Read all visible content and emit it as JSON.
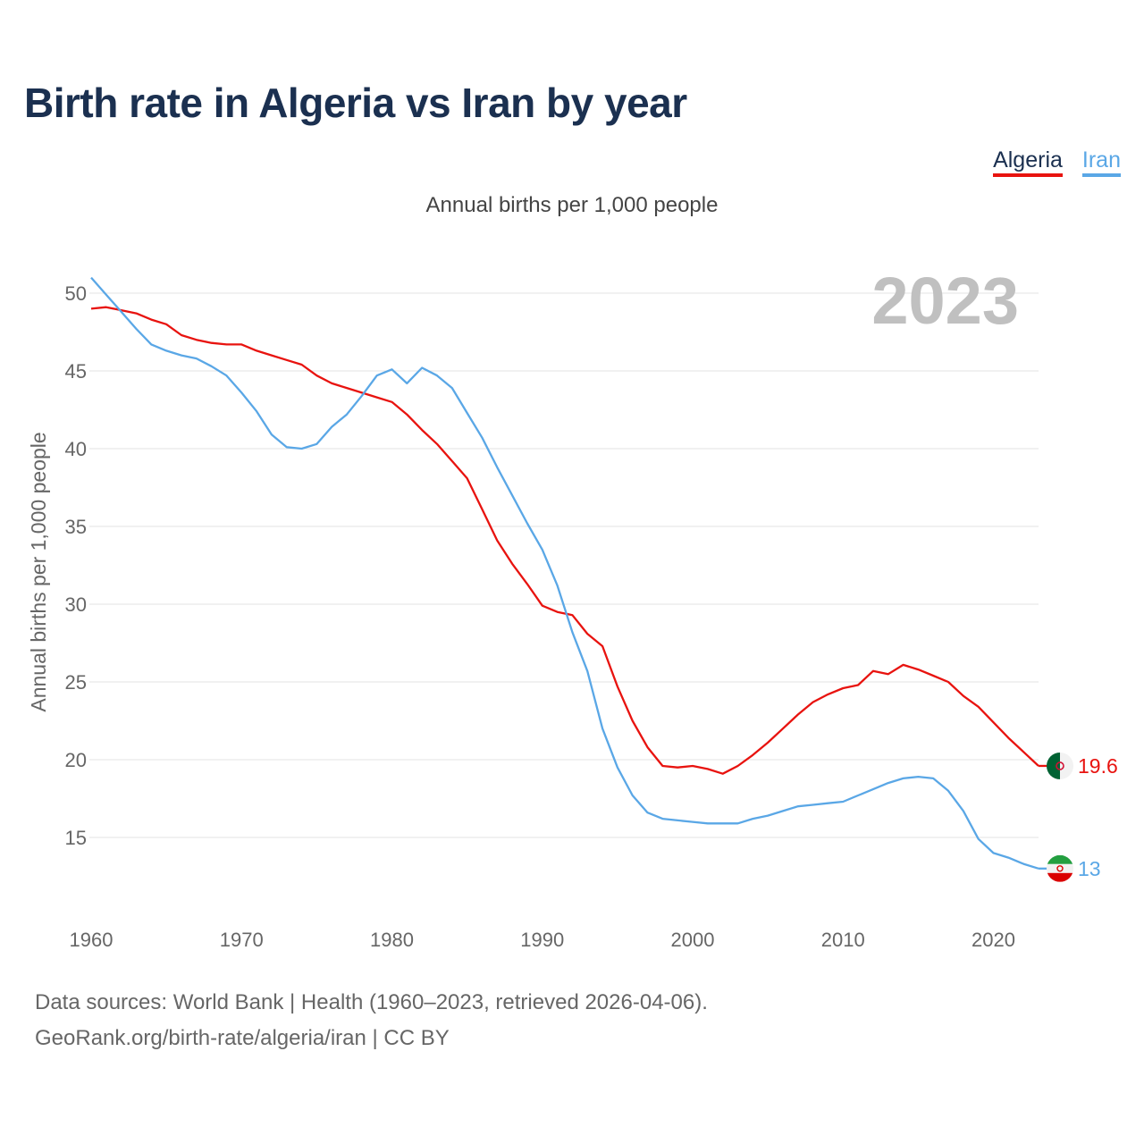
{
  "title": "Birth rate in Algeria vs Iran by year",
  "subtitle": "Annual births per 1,000 people",
  "year_watermark": "2023",
  "footer": {
    "line1": "Data sources: World Bank | Health (1960–2023, retrieved 2026-04-06).",
    "line2": "GeoRank.org/birth-rate/algeria/iran | CC BY"
  },
  "colors": {
    "algeria": "#e8130f",
    "iran": "#5aa7e6",
    "title": "#1b3050",
    "watermark": "#c0c0c0"
  },
  "chart_data": {
    "type": "line",
    "title": "Birth rate in Algeria vs Iran by year",
    "subtitle": "Annual births per 1,000 people",
    "xlabel": "",
    "ylabel": "Annual births per 1,000 people",
    "xlim": [
      1960,
      2023
    ],
    "ylim": [
      10,
      52
    ],
    "xticks": [
      1960,
      1970,
      1980,
      1990,
      2000,
      2010,
      2020
    ],
    "yticks": [
      15,
      20,
      25,
      30,
      35,
      40,
      45,
      50
    ],
    "grid": "horizontal",
    "legend_position": "top-right",
    "x": [
      1960,
      1961,
      1962,
      1963,
      1964,
      1965,
      1966,
      1967,
      1968,
      1969,
      1970,
      1971,
      1972,
      1973,
      1974,
      1975,
      1976,
      1977,
      1978,
      1979,
      1980,
      1981,
      1982,
      1983,
      1984,
      1985,
      1986,
      1987,
      1988,
      1989,
      1990,
      1991,
      1992,
      1993,
      1994,
      1995,
      1996,
      1997,
      1998,
      1999,
      2000,
      2001,
      2002,
      2003,
      2004,
      2005,
      2006,
      2007,
      2008,
      2009,
      2010,
      2011,
      2012,
      2013,
      2014,
      2015,
      2016,
      2017,
      2018,
      2019,
      2020,
      2021,
      2022,
      2023
    ],
    "series": [
      {
        "name": "Algeria",
        "color": "#e8130f",
        "end_label": "19.6",
        "values": [
          49.0,
          49.1,
          48.9,
          48.7,
          48.3,
          48.0,
          47.3,
          47.0,
          46.8,
          46.7,
          46.7,
          46.3,
          46.0,
          45.7,
          45.4,
          44.7,
          44.2,
          43.9,
          43.6,
          43.3,
          43.0,
          42.2,
          41.2,
          40.3,
          39.2,
          38.1,
          36.1,
          34.1,
          32.6,
          31.3,
          29.9,
          29.5,
          29.3,
          28.1,
          27.3,
          24.7,
          22.5,
          20.8,
          19.6,
          19.5,
          19.6,
          19.4,
          19.1,
          19.6,
          20.3,
          21.1,
          22.0,
          22.9,
          23.7,
          24.2,
          24.6,
          24.8,
          25.7,
          25.5,
          26.1,
          25.8,
          25.4,
          25.0,
          24.1,
          23.4,
          22.4,
          21.4,
          20.5,
          19.6
        ]
      },
      {
        "name": "Iran",
        "color": "#5aa7e6",
        "end_label": "13",
        "values": [
          51.0,
          49.9,
          48.8,
          47.7,
          46.7,
          46.3,
          46.0,
          45.8,
          45.3,
          44.7,
          43.6,
          42.4,
          40.9,
          40.1,
          40.0,
          40.3,
          41.4,
          42.2,
          43.4,
          44.7,
          45.1,
          44.2,
          45.2,
          44.7,
          43.9,
          42.3,
          40.7,
          38.8,
          37.0,
          35.2,
          33.5,
          31.2,
          28.2,
          25.7,
          22.0,
          19.5,
          17.7,
          16.6,
          16.2,
          16.1,
          16.0,
          15.9,
          15.9,
          15.9,
          16.2,
          16.4,
          16.7,
          17.0,
          17.1,
          17.2,
          17.3,
          17.7,
          18.1,
          18.5,
          18.8,
          18.9,
          18.8,
          18.0,
          16.7,
          14.9,
          14.0,
          13.7,
          13.3,
          13.0
        ]
      }
    ]
  }
}
